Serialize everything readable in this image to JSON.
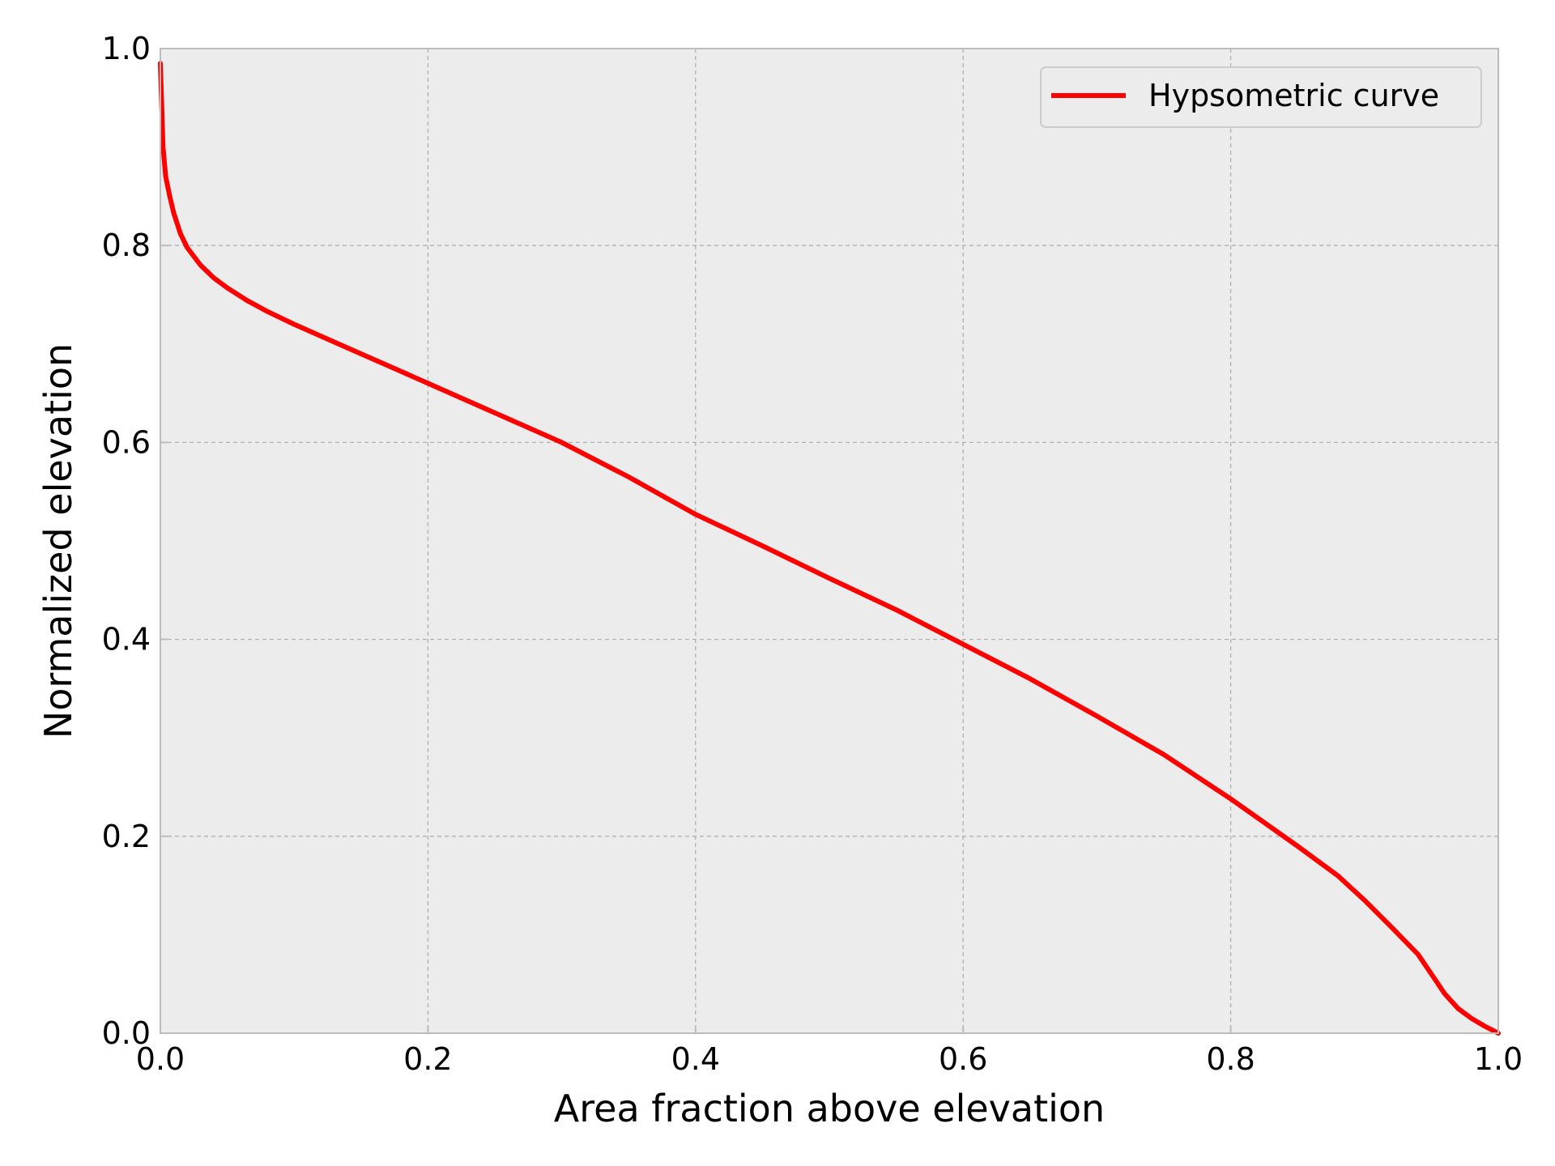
{
  "chart_data": {
    "type": "line",
    "xlabel": "Area fraction above elevation",
    "ylabel": "Normalized elevation",
    "xlim": [
      0.0,
      1.0
    ],
    "ylim": [
      0.0,
      1.0
    ],
    "xticks": [
      "0.0",
      "0.2",
      "0.4",
      "0.6",
      "0.8",
      "1.0"
    ],
    "yticks": [
      "0.0",
      "0.2",
      "0.4",
      "0.6",
      "0.8",
      "1.0"
    ],
    "grid": true,
    "legend_position": "top-right",
    "colors": {
      "background": "#ececec",
      "grid": "#b0b0b0",
      "spine": "#bcbcbc",
      "line": "#ff0000"
    },
    "series": [
      {
        "name": "Hypsometric curve",
        "color": "#ff0000",
        "x": [
          0.0,
          0.002,
          0.004,
          0.007,
          0.01,
          0.015,
          0.02,
          0.03,
          0.04,
          0.05,
          0.065,
          0.08,
          0.1,
          0.12,
          0.15,
          0.18,
          0.2,
          0.25,
          0.3,
          0.35,
          0.4,
          0.45,
          0.5,
          0.55,
          0.6,
          0.65,
          0.7,
          0.75,
          0.8,
          0.85,
          0.88,
          0.9,
          0.92,
          0.94,
          0.95,
          0.96,
          0.97,
          0.98,
          0.99,
          1.0
        ],
        "y": [
          0.985,
          0.9,
          0.87,
          0.85,
          0.833,
          0.812,
          0.798,
          0.78,
          0.767,
          0.757,
          0.744,
          0.733,
          0.72,
          0.708,
          0.69,
          0.672,
          0.66,
          0.63,
          0.6,
          0.565,
          0.527,
          0.495,
          0.462,
          0.43,
          0.395,
          0.36,
          0.322,
          0.283,
          0.238,
          0.19,
          0.16,
          0.135,
          0.108,
          0.08,
          0.06,
          0.04,
          0.025,
          0.015,
          0.007,
          0.0
        ]
      }
    ]
  }
}
